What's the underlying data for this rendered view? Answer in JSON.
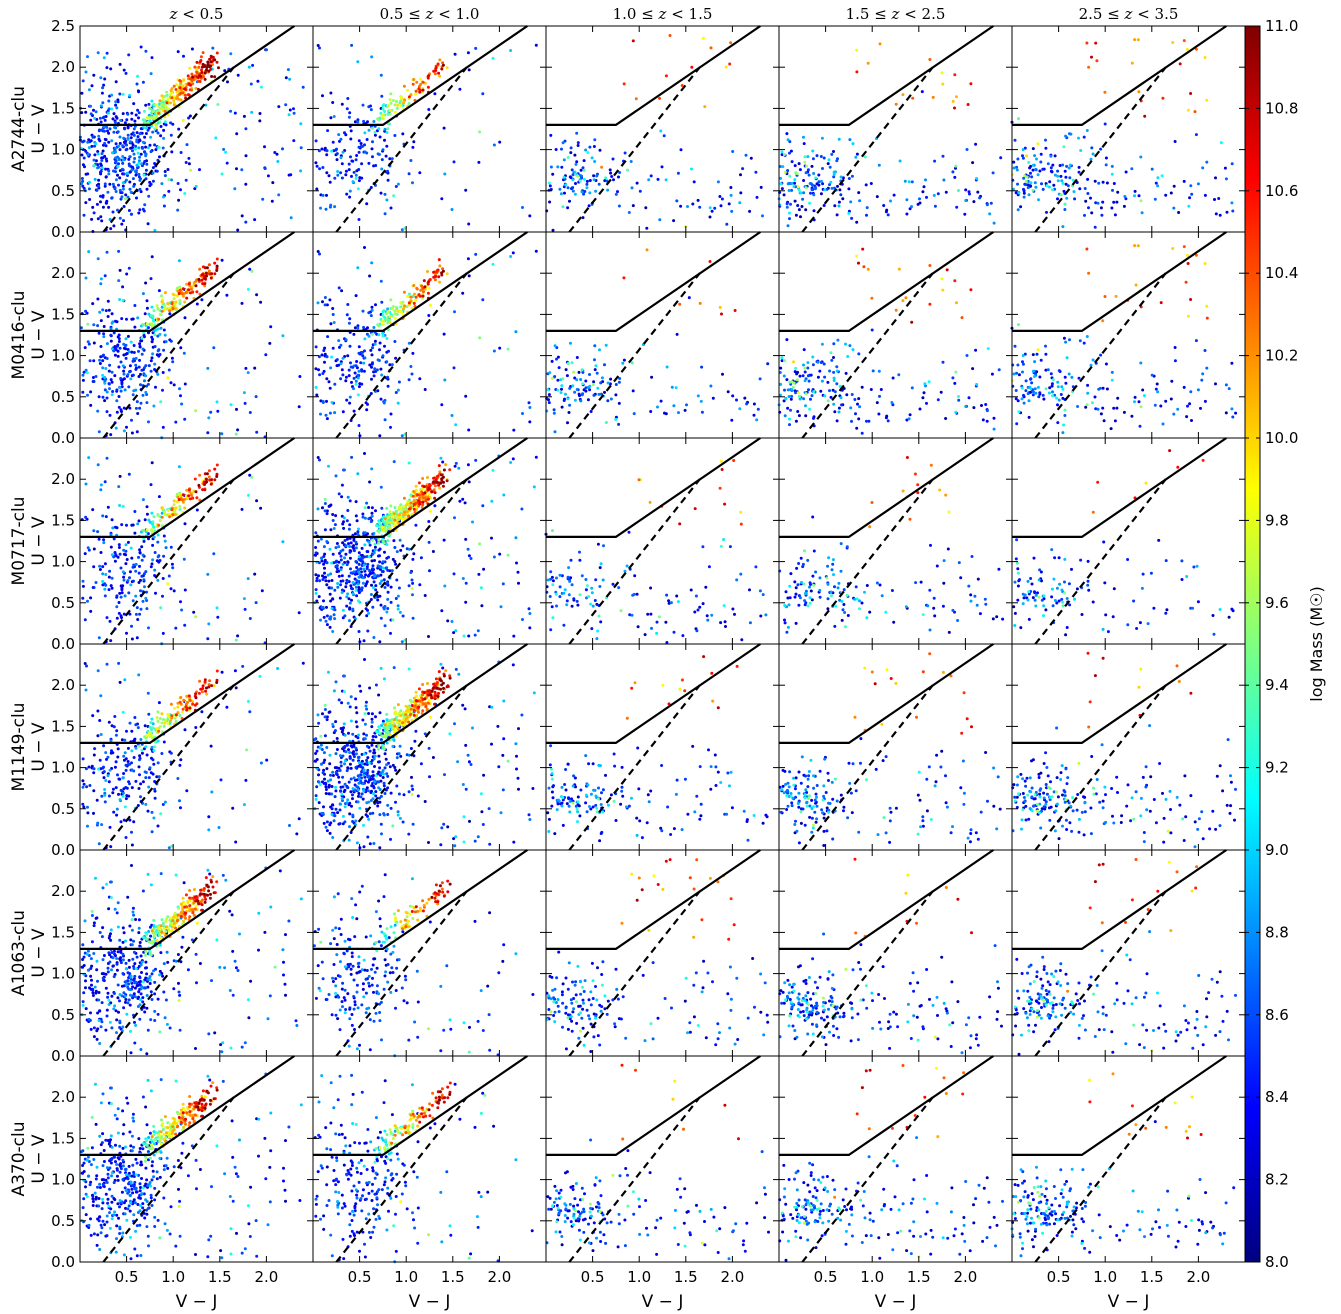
{
  "chart_data": {
    "type": "scatter",
    "panel_titles": [
      "z < 0.5",
      "0.5 ≤ z < 1.0",
      "1.0 ≤ z < 1.5",
      "1.5 ≤ z < 2.5",
      "2.5 ≤ z < 3.5"
    ],
    "row_labels": [
      "A2744-clu",
      "M0416-clu",
      "M0717-clu",
      "M1149-clu",
      "A1063-clu",
      "A370-clu"
    ],
    "ylabel": "U − V",
    "xlabel": "V − J",
    "xlim": [
      0.0,
      2.5
    ],
    "ylim": [
      0.0,
      2.5
    ],
    "x_ticks": [
      "0.5",
      "1.0",
      "1.5",
      "2.0"
    ],
    "x_tick_values": [
      0.5,
      1.0,
      1.5,
      2.0
    ],
    "y_ticks": [
      "0.0",
      "0.5",
      "1.0",
      "1.5",
      "2.0",
      "2.5"
    ],
    "y_tick_values": [
      0.0,
      0.5,
      1.0,
      1.5,
      2.0,
      2.5
    ],
    "y_tick_labels_upper_rows": [
      "0.0",
      "0.5",
      "1.0",
      "1.5",
      "2.0"
    ],
    "quiescent_boundary": {
      "horizontal": {
        "x": [
          0.0,
          0.75
        ],
        "y": [
          1.3,
          1.3
        ]
      },
      "diagonal": {
        "x": [
          0.75,
          2.3
        ],
        "y": [
          1.3,
          2.5
        ]
      },
      "style": "solid black"
    },
    "dashed_line": {
      "x": [
        0.25,
        1.65
      ],
      "y": [
        0.0,
        2.0
      ],
      "style": "dashed black"
    },
    "colorbar": {
      "label": "log Mass (M☉)",
      "range": [
        8.0,
        11.0
      ],
      "ticks": [
        "8.0",
        "8.2",
        "8.4",
        "8.6",
        "8.8",
        "9.0",
        "9.2",
        "9.4",
        "9.6",
        "9.8",
        "10.0",
        "10.2",
        "10.4",
        "10.6",
        "10.8",
        "11.0"
      ],
      "tick_values": [
        8.0,
        8.2,
        8.4,
        8.6,
        8.8,
        9.0,
        9.2,
        9.4,
        9.6,
        9.8,
        10.0,
        10.2,
        10.4,
        10.6,
        10.8,
        11.0
      ],
      "colormap": "jet",
      "colormap_stops": [
        "#00007f",
        "#0000ff",
        "#007fff",
        "#00ffff",
        "#7fff7f",
        "#ffff00",
        "#ff7f00",
        "#ff0000",
        "#7f0000"
      ]
    },
    "point_density_per_panel": [
      [
        1.0,
        0.35,
        0.22,
        0.3,
        0.28
      ],
      [
        0.6,
        0.45,
        0.2,
        0.28,
        0.25
      ],
      [
        0.45,
        1.0,
        0.18,
        0.2,
        0.16
      ],
      [
        0.45,
        1.0,
        0.22,
        0.25,
        0.28
      ],
      [
        0.75,
        0.35,
        0.22,
        0.28,
        0.26
      ],
      [
        0.75,
        0.42,
        0.22,
        0.26,
        0.26
      ]
    ],
    "grid": false,
    "legend": "none"
  }
}
